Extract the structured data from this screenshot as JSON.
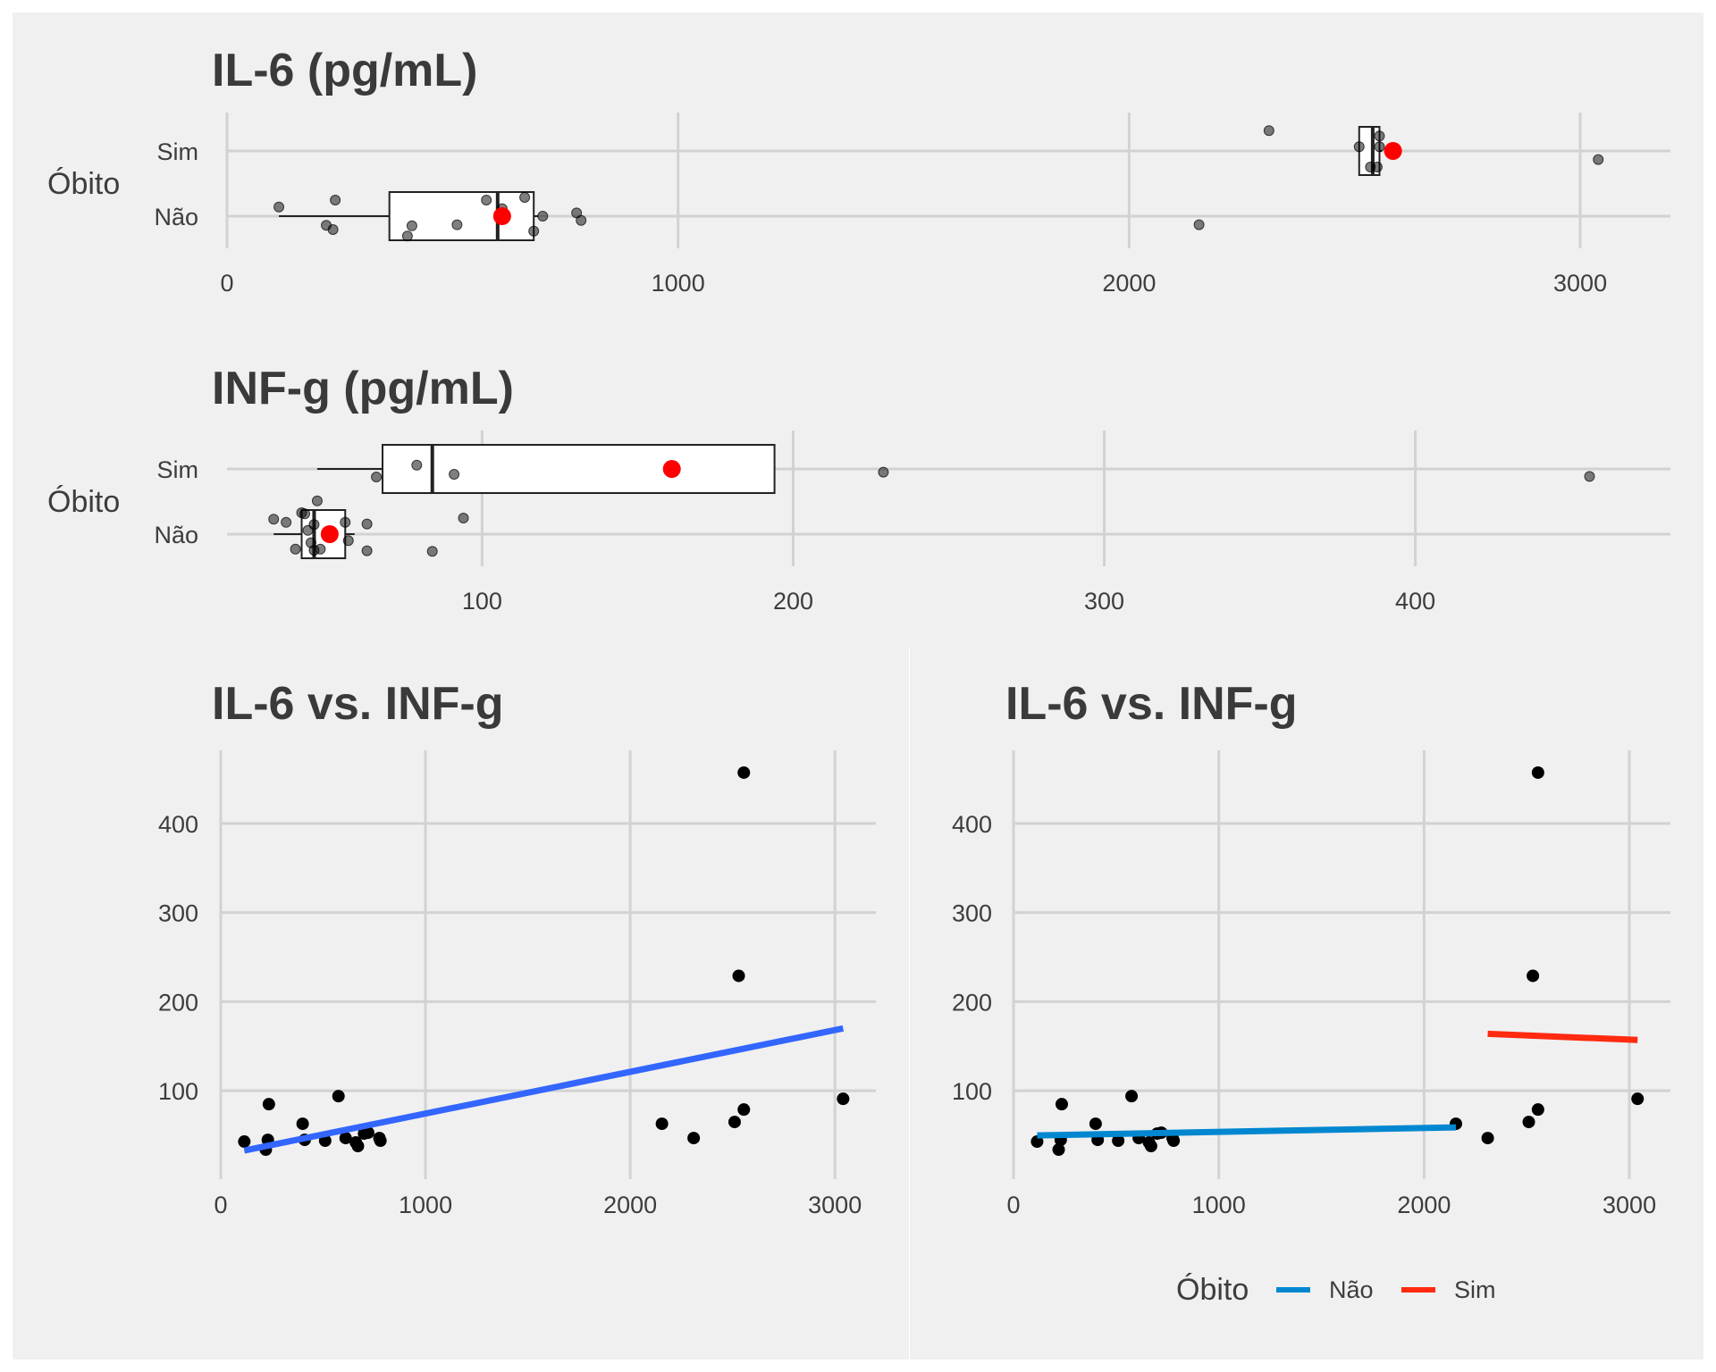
{
  "chart_data": [
    {
      "type": "box",
      "title": "IL-6 (pg/mL)",
      "ylabel": "Óbito",
      "categories": [
        "Sim",
        "Não"
      ],
      "xlim": [
        0,
        3200
      ],
      "xticks": [
        0,
        1000,
        2000,
        3000
      ],
      "grid": true,
      "boxes": [
        {
          "group": "Sim",
          "whisker_low": 2510,
          "q1": 2510,
          "median": 2540,
          "q3": 2555,
          "whisker_high": 2560,
          "mean": 2585,
          "points": [
            [
              2310,
              0.38
            ],
            [
              2555,
              0.28
            ],
            [
              2510,
              0.08
            ],
            [
              2555,
              0.08
            ],
            [
              2535,
              -0.3
            ],
            [
              2550,
              -0.3
            ],
            [
              3040,
              -0.16
            ]
          ]
        },
        {
          "group": "Não",
          "whisker_low": 115,
          "q1": 360,
          "median": 600,
          "q3": 680,
          "whisker_high": 690,
          "mean": 610,
          "points": [
            [
              115,
              0.17
            ],
            [
              240,
              0.3
            ],
            [
              220,
              -0.17
            ],
            [
              235,
              -0.25
            ],
            [
              400,
              -0.37
            ],
            [
              410,
              -0.18
            ],
            [
              510,
              -0.16
            ],
            [
              575,
              0.3
            ],
            [
              610,
              0.14
            ],
            [
              660,
              0.35
            ],
            [
              680,
              -0.28
            ],
            [
              700,
              0.0
            ],
            [
              775,
              0.06
            ],
            [
              785,
              -0.08
            ],
            [
              2155,
              -0.16
            ]
          ]
        }
      ]
    },
    {
      "type": "box",
      "title": "INF-g (pg/mL)",
      "ylabel": "Óbito",
      "categories": [
        "Sim",
        "Não"
      ],
      "xlim": [
        18,
        482
      ],
      "xticks": [
        100,
        200,
        300,
        400
      ],
      "grid": true,
      "boxes": [
        {
          "group": "Sim",
          "whisker_low": 47,
          "q1": 68,
          "median": 84,
          "q3": 194,
          "whisker_high": 194,
          "mean": 161,
          "points": [
            [
              66,
              -0.15
            ],
            [
              79,
              0.07
            ],
            [
              91,
              -0.1
            ],
            [
              229,
              -0.06
            ],
            [
              456,
              -0.14
            ]
          ]
        },
        {
          "group": "Não",
          "whisker_low": 33,
          "q1": 42,
          "median": 46,
          "q3": 56,
          "whisker_high": 59,
          "mean": 51,
          "points": [
            [
              33,
              0.28
            ],
            [
              37,
              0.22
            ],
            [
              40,
              -0.28
            ],
            [
              42,
              0.4
            ],
            [
              43,
              0.38
            ],
            [
              44,
              0.07
            ],
            [
              45,
              -0.16
            ],
            [
              46,
              0.18
            ],
            [
              46,
              -0.3
            ],
            [
              47,
              0.62
            ],
            [
              48,
              -0.28
            ],
            [
              56,
              0.22
            ],
            [
              57,
              -0.12
            ],
            [
              63,
              0.19
            ],
            [
              63,
              -0.31
            ],
            [
              84,
              -0.32
            ],
            [
              94,
              0.3
            ]
          ]
        }
      ]
    },
    {
      "type": "scatter",
      "title": "IL-6 vs. INF-g",
      "xlim": [
        0,
        3200
      ],
      "ylim": [
        15,
        480
      ],
      "xticks": [
        0,
        1000,
        2000,
        3000
      ],
      "yticks": [
        100,
        200,
        300,
        400
      ],
      "grid": true,
      "points": [
        [
          115,
          43
        ],
        [
          220,
          34
        ],
        [
          235,
          85
        ],
        [
          230,
          45
        ],
        [
          400,
          63
        ],
        [
          410,
          45
        ],
        [
          510,
          44
        ],
        [
          575,
          94
        ],
        [
          610,
          47
        ],
        [
          660,
          42
        ],
        [
          670,
          38
        ],
        [
          700,
          52
        ],
        [
          720,
          53
        ],
        [
          775,
          47
        ],
        [
          780,
          44
        ],
        [
          2155,
          63
        ],
        [
          2310,
          47
        ],
        [
          2510,
          65
        ],
        [
          2530,
          229
        ],
        [
          2555,
          79
        ],
        [
          2555,
          457
        ],
        [
          3040,
          91
        ]
      ],
      "lines": [
        {
          "color": "#3366ff",
          "x": [
            115,
            3040
          ],
          "y": [
            33,
            170
          ]
        }
      ]
    },
    {
      "type": "scatter",
      "title": "IL-6 vs. INF-g",
      "xlim": [
        0,
        3200
      ],
      "ylim": [
        15,
        480
      ],
      "xticks": [
        0,
        1000,
        2000,
        3000
      ],
      "yticks": [
        100,
        200,
        300,
        400
      ],
      "grid": true,
      "legend_position": "bottom",
      "points": [
        [
          115,
          43
        ],
        [
          220,
          34
        ],
        [
          235,
          85
        ],
        [
          230,
          45
        ],
        [
          400,
          63
        ],
        [
          410,
          45
        ],
        [
          510,
          44
        ],
        [
          575,
          94
        ],
        [
          610,
          47
        ],
        [
          660,
          42
        ],
        [
          670,
          38
        ],
        [
          700,
          52
        ],
        [
          720,
          53
        ],
        [
          775,
          47
        ],
        [
          780,
          44
        ],
        [
          2155,
          63
        ],
        [
          2310,
          47
        ],
        [
          2510,
          65
        ],
        [
          2530,
          229
        ],
        [
          2555,
          79
        ],
        [
          2555,
          457
        ],
        [
          3040,
          91
        ]
      ],
      "lines": [
        {
          "name": "Não",
          "color": "#0087d0",
          "x": [
            115,
            2155
          ],
          "y": [
            50,
            59
          ]
        },
        {
          "name": "Sim",
          "color": "#ff2a10",
          "x": [
            2310,
            3040
          ],
          "y": [
            164,
            157
          ]
        }
      ],
      "legend": {
        "title": "Óbito",
        "entries": [
          {
            "label": "Não",
            "color": "#0087d0"
          },
          {
            "label": "Sim",
            "color": "#ff2a10"
          }
        ]
      }
    }
  ]
}
